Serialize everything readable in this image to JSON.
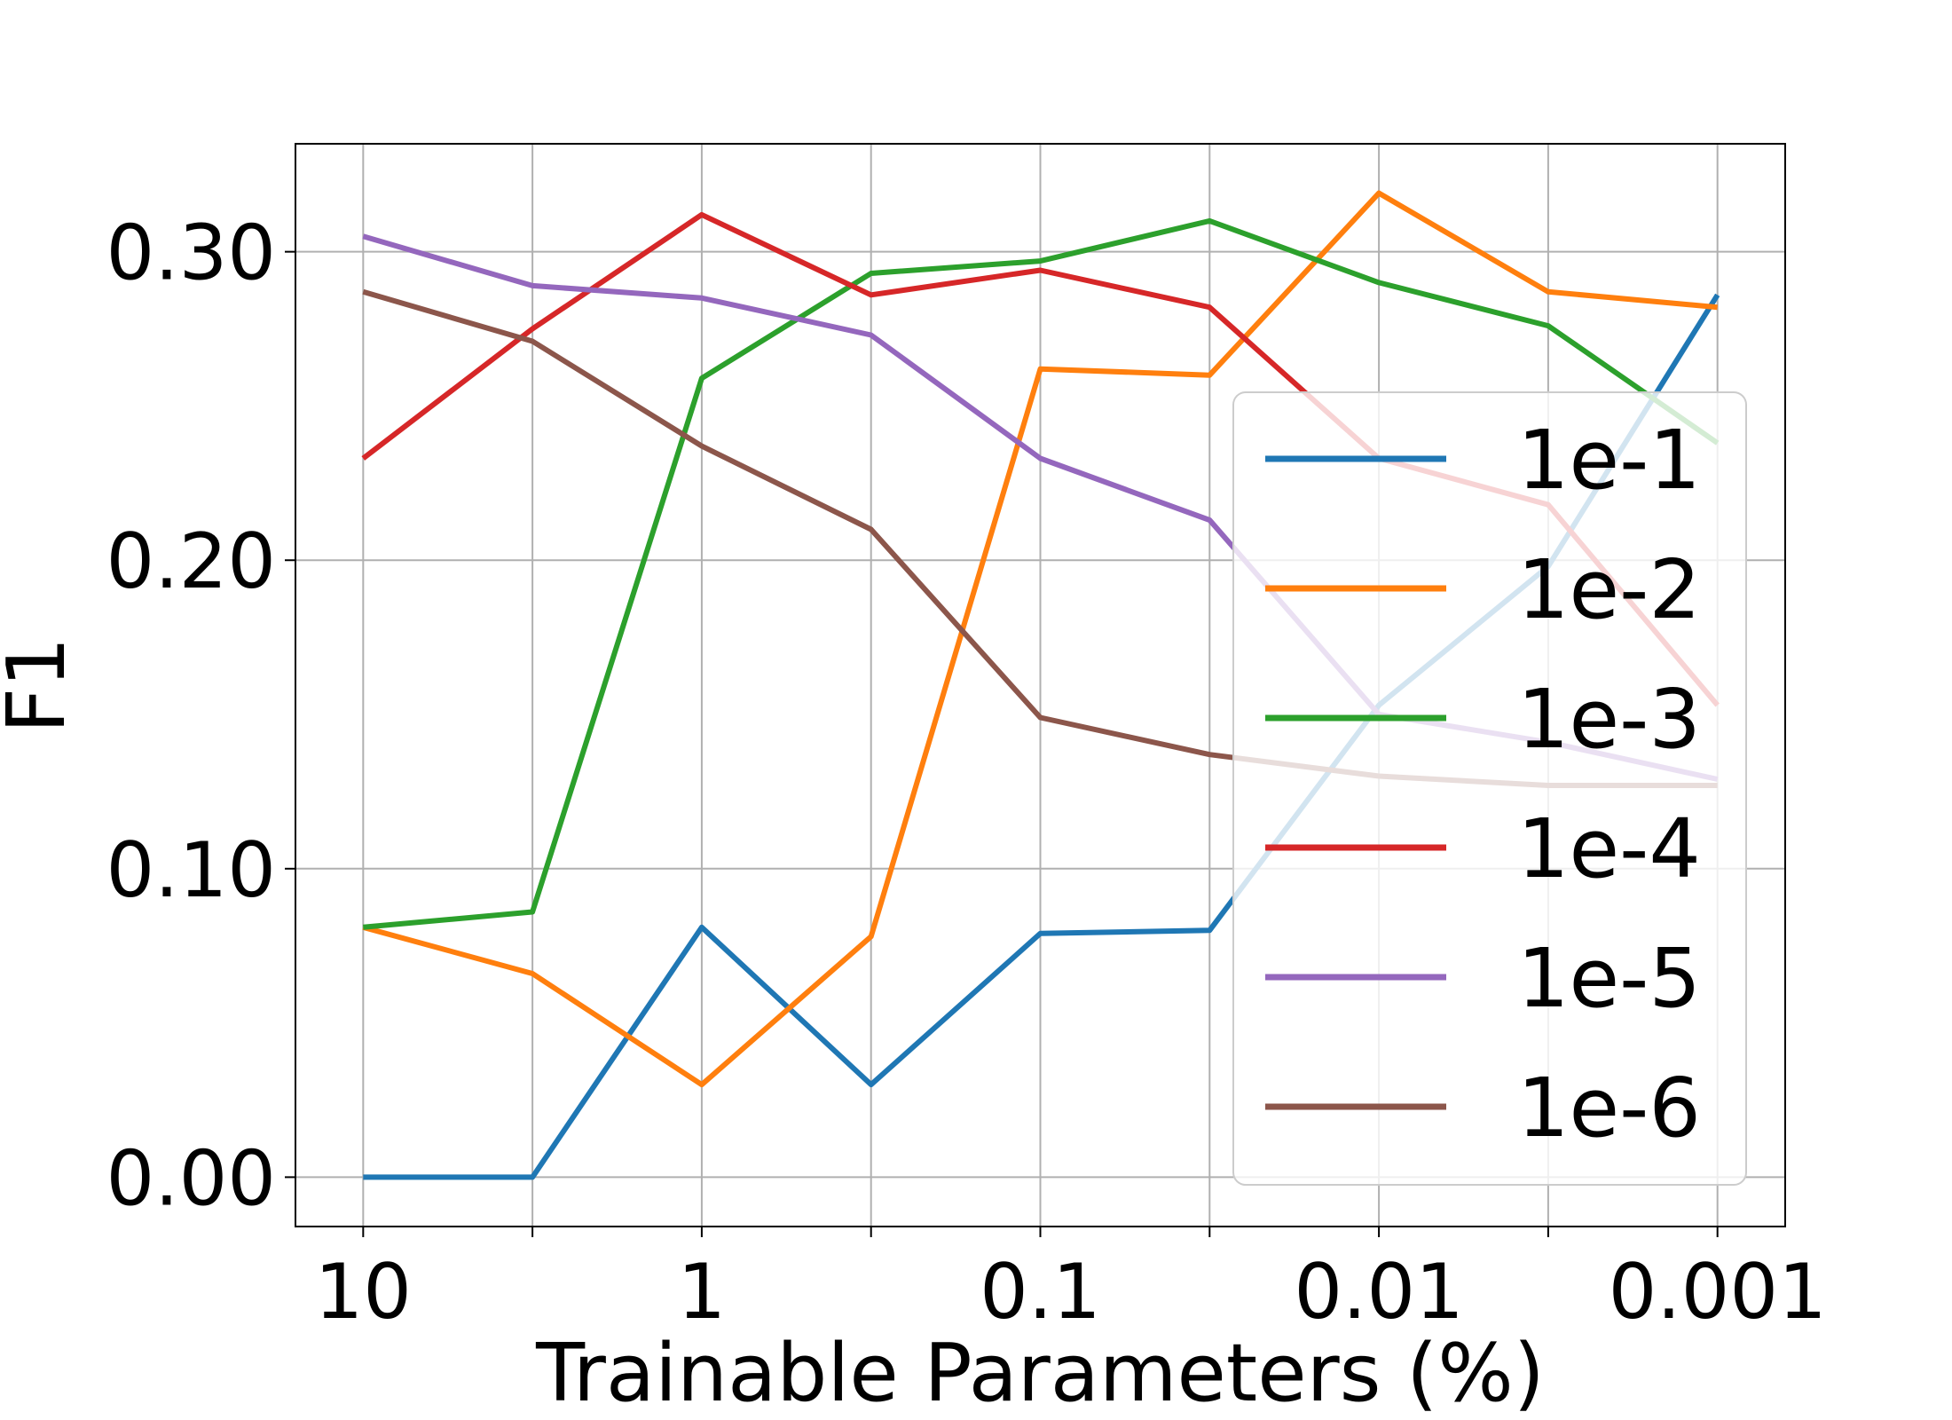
{
  "chart_data": {
    "type": "line",
    "xlabel": "Trainable Parameters (%)",
    "ylabel": "F1",
    "x_categories": [
      "10",
      "",
      "1",
      "",
      "0.1",
      "",
      "0.01",
      "",
      "0.001"
    ],
    "xlim": [
      -0.4,
      8.4
    ],
    "ylim": [
      -0.016,
      0.335
    ],
    "yticks": [
      0.0,
      0.1,
      0.2,
      0.3
    ],
    "ytick_labels": [
      "0.00",
      "0.10",
      "0.20",
      "0.30"
    ],
    "grid": true,
    "legend_position": "lower-right",
    "series": [
      {
        "name": "1e-1",
        "color": "#1f77b4",
        "values": [
          0.0,
          0.0,
          0.081,
          0.03,
          0.079,
          0.08,
          0.153,
          0.198,
          0.286
        ]
      },
      {
        "name": "1e-2",
        "color": "#ff7f0e",
        "values": [
          0.081,
          0.066,
          0.03,
          0.078,
          0.262,
          0.26,
          0.319,
          0.287,
          0.282
        ]
      },
      {
        "name": "1e-3",
        "color": "#2ca02c",
        "values": [
          0.081,
          0.086,
          0.259,
          0.293,
          0.297,
          0.31,
          0.29,
          0.276,
          0.238
        ]
      },
      {
        "name": "1e-4",
        "color": "#d62728",
        "values": [
          0.233,
          0.275,
          0.312,
          0.286,
          0.294,
          0.282,
          0.233,
          0.218,
          0.153
        ]
      },
      {
        "name": "1e-5",
        "color": "#9467bd",
        "values": [
          0.305,
          0.289,
          0.285,
          0.273,
          0.233,
          0.213,
          0.15,
          0.141,
          0.129
        ]
      },
      {
        "name": "1e-6",
        "color": "#8c564b",
        "values": [
          0.287,
          0.271,
          0.237,
          0.21,
          0.149,
          0.137,
          0.13,
          0.127,
          0.127
        ]
      }
    ]
  }
}
